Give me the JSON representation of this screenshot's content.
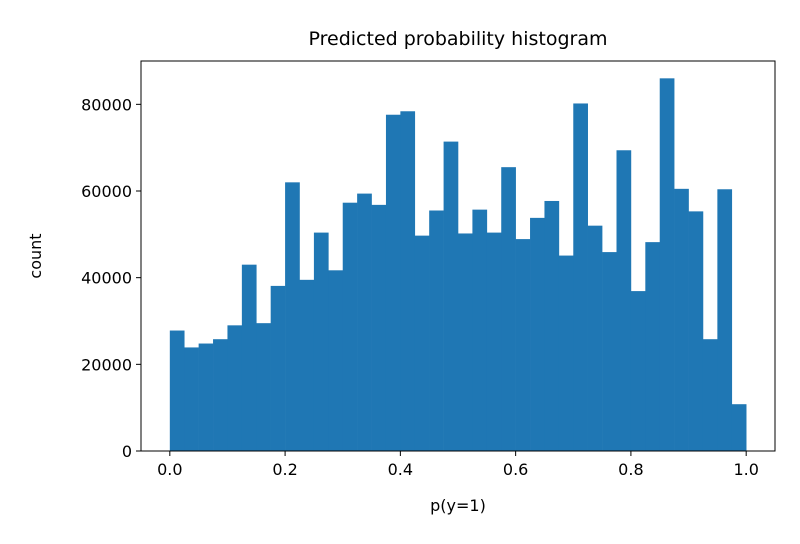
{
  "chart_data": {
    "type": "bar",
    "title": "Predicted probability histogram",
    "xlabel": "p(y=1)",
    "ylabel": "count",
    "xlim": [
      -0.05,
      1.05
    ],
    "ylim": [
      0,
      90000
    ],
    "bar_color": "#1f77b4",
    "grid": false,
    "bin_width": 0.025,
    "bin_starts": [
      0.0,
      0.025,
      0.05,
      0.075,
      0.1,
      0.125,
      0.15,
      0.175,
      0.2,
      0.225,
      0.25,
      0.275,
      0.3,
      0.325,
      0.35,
      0.375,
      0.4,
      0.425,
      0.45,
      0.475,
      0.5,
      0.525,
      0.55,
      0.575,
      0.6,
      0.625,
      0.65,
      0.675,
      0.7,
      0.725,
      0.75,
      0.775,
      0.8,
      0.825,
      0.85,
      0.875,
      0.9,
      0.925,
      0.95,
      0.975
    ],
    "values": [
      27800,
      23900,
      24800,
      25800,
      29000,
      43000,
      29500,
      38100,
      62000,
      39500,
      50400,
      41700,
      57300,
      59400,
      56800,
      77600,
      78400,
      49700,
      55500,
      71400,
      50200,
      55700,
      50400,
      65500,
      48900,
      53800,
      57700,
      45100,
      80200,
      52000,
      45900,
      69400,
      36900,
      48200,
      86000,
      60500,
      55300,
      25800,
      60400,
      10800
    ],
    "x_ticks": [
      {
        "value": 0.0,
        "label": "0.0"
      },
      {
        "value": 0.2,
        "label": "0.2"
      },
      {
        "value": 0.4,
        "label": "0.4"
      },
      {
        "value": 0.6,
        "label": "0.6"
      },
      {
        "value": 0.8,
        "label": "0.8"
      },
      {
        "value": 1.0,
        "label": "1.0"
      }
    ],
    "y_ticks": [
      {
        "value": 0,
        "label": "0"
      },
      {
        "value": 20000,
        "label": "20000"
      },
      {
        "value": 40000,
        "label": "40000"
      },
      {
        "value": 60000,
        "label": "60000"
      },
      {
        "value": 80000,
        "label": "80000"
      }
    ]
  }
}
